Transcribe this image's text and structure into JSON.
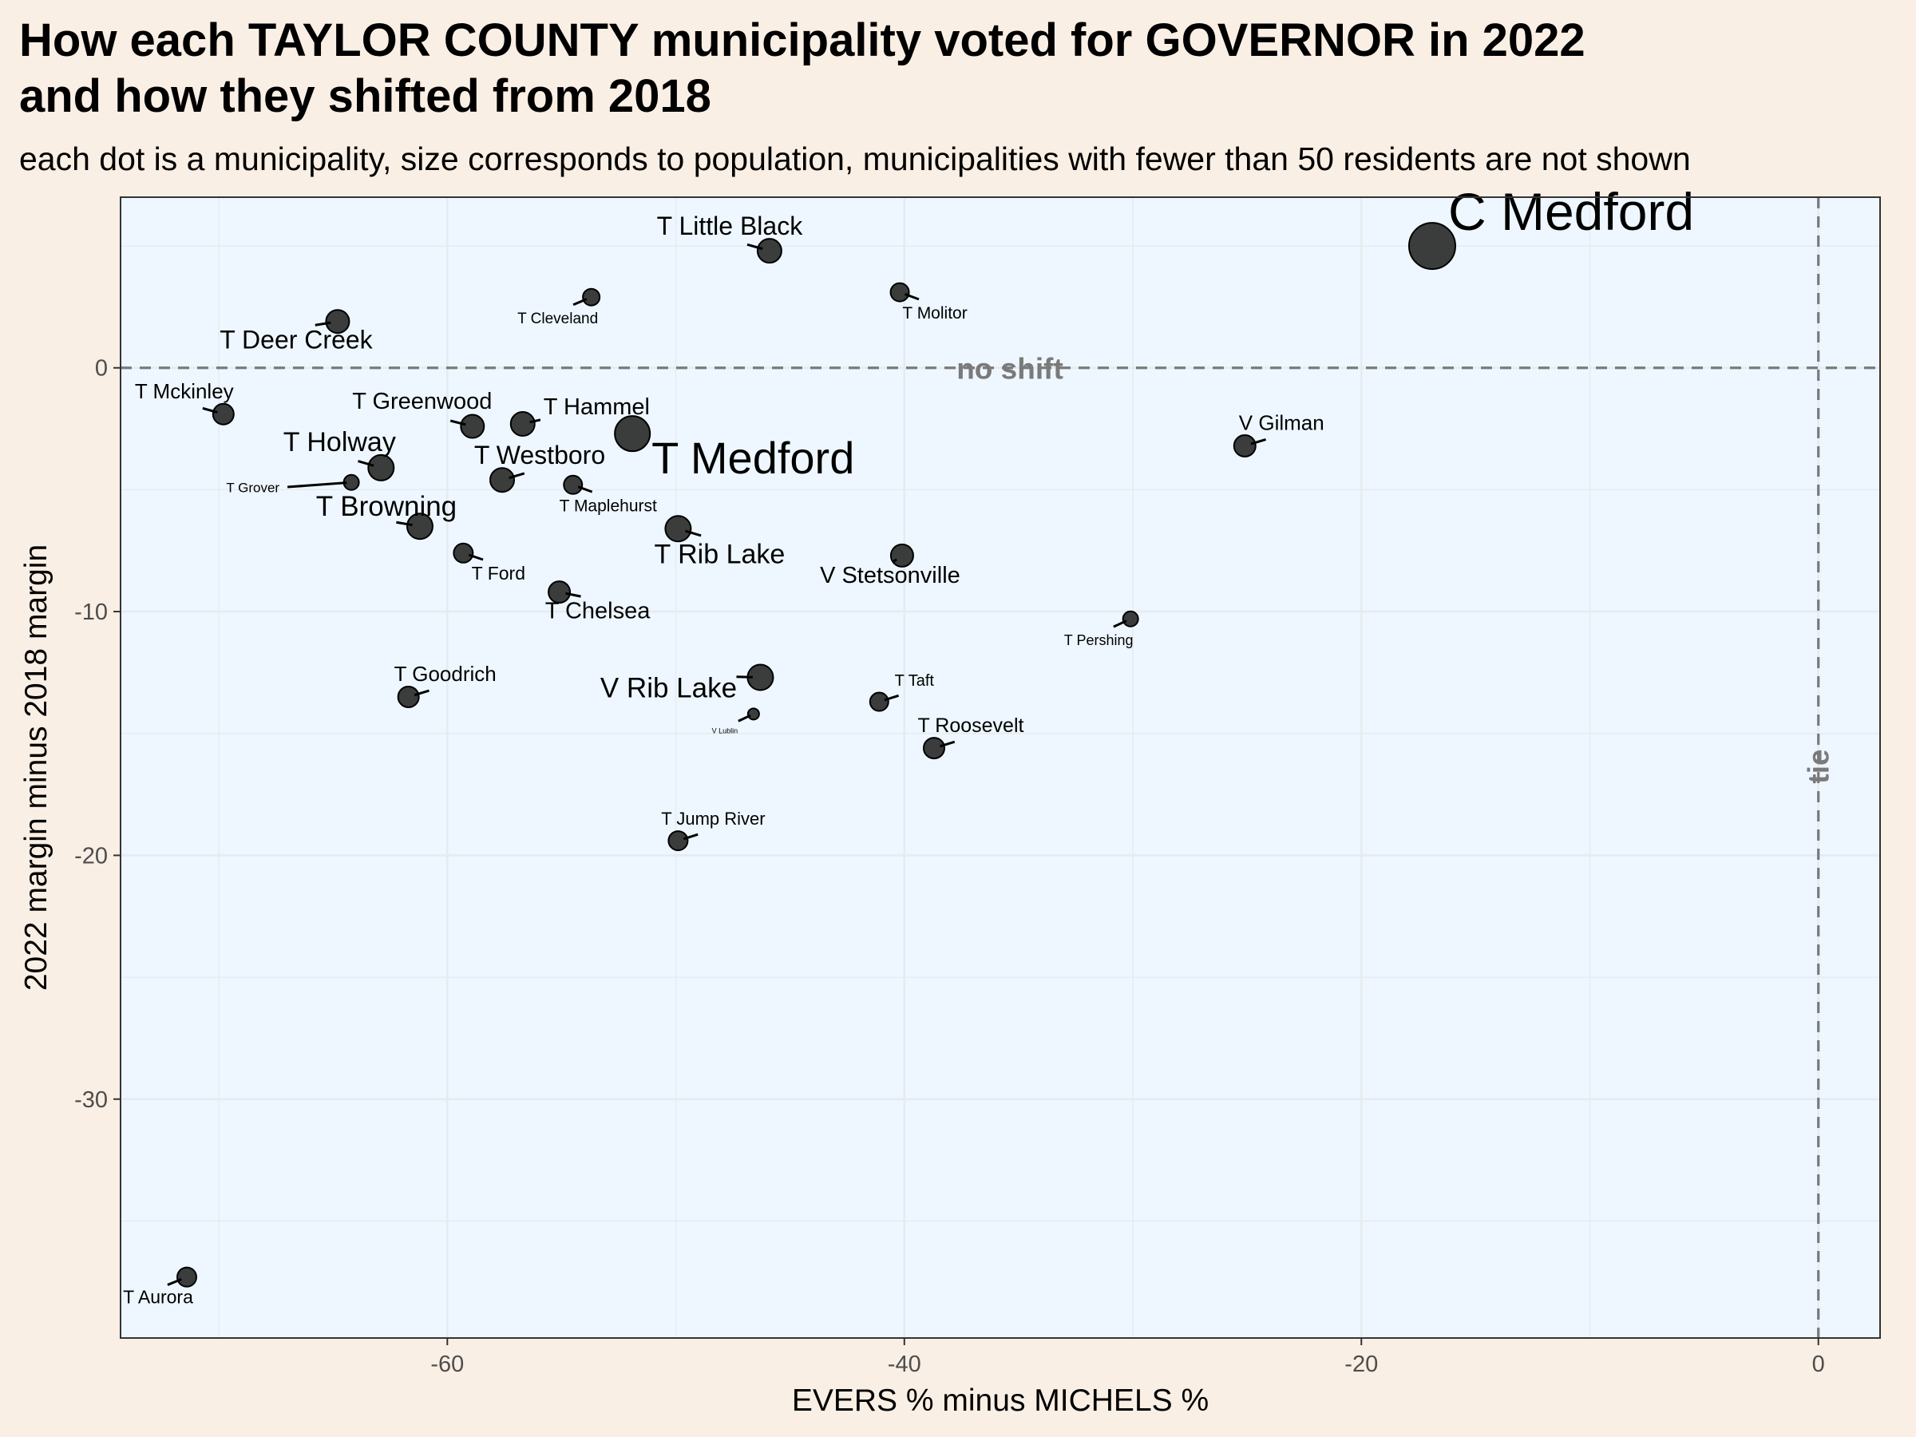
{
  "title_line1": "How each TAYLOR COUNTY municipality voted for GOVERNOR in 2022",
  "title_line2": "and how they shifted from 2018",
  "subtitle": "each dot is a municipality, size corresponds to population, municipalities with fewer than 50 residents are not shown",
  "colors": {
    "page_background": "#faefe4",
    "panel_background": "#eef7ff",
    "grid": "#e6ebef",
    "point_fill": "#2b2b2b",
    "reference_line": "#7a7a7a"
  },
  "chart_data": {
    "type": "scatter",
    "xlabel": "EVERS % minus MICHELS %",
    "ylabel": "2022 margin minus 2018 margin",
    "xlim": [
      -74.3,
      2.7
    ],
    "ylim": [
      -39.8,
      7
    ],
    "x_ticks": [
      -60,
      -40,
      -20,
      0
    ],
    "y_ticks": [
      0,
      -10,
      -20,
      -30
    ],
    "grid": true,
    "reference_lines": {
      "horizontal": {
        "value": 0,
        "label": "no shift"
      },
      "vertical": {
        "value": 0,
        "label": "tie"
      }
    },
    "points": [
      {
        "name": "C Medford",
        "x": -16.9,
        "y": 5.0,
        "size": 58,
        "label_size": 66
      },
      {
        "name": "T Little Black",
        "x": -45.9,
        "y": 4.8,
        "size": 30,
        "label_size": 32
      },
      {
        "name": "T Cleveland",
        "x": -53.7,
        "y": 2.9,
        "size": 21,
        "label_size": 19
      },
      {
        "name": "T Molitor",
        "x": -40.2,
        "y": 3.1,
        "size": 23,
        "label_size": 21
      },
      {
        "name": "T Deer Creek",
        "x": -64.8,
        "y": 1.9,
        "size": 29,
        "label_size": 32
      },
      {
        "name": "T Mckinley",
        "x": -69.8,
        "y": -1.9,
        "size": 26,
        "label_size": 26
      },
      {
        "name": "T Greenwood",
        "x": -58.9,
        "y": -2.4,
        "size": 29,
        "label_size": 29
      },
      {
        "name": "T Hammel",
        "x": -56.7,
        "y": -2.3,
        "size": 30,
        "label_size": 29
      },
      {
        "name": "T Medford",
        "x": -51.9,
        "y": -2.7,
        "size": 44,
        "label_size": 56
      },
      {
        "name": "V Gilman",
        "x": -25.1,
        "y": -3.2,
        "size": 27,
        "label_size": 26
      },
      {
        "name": "T Holway",
        "x": -62.9,
        "y": -4.1,
        "size": 32,
        "label_size": 34
      },
      {
        "name": "T Westboro",
        "x": -57.6,
        "y": -4.6,
        "size": 30,
        "label_size": 32
      },
      {
        "name": "T Grover",
        "x": -64.2,
        "y": -4.7,
        "size": 19,
        "label_size": 17
      },
      {
        "name": "T Maplehurst",
        "x": -54.5,
        "y": -4.8,
        "size": 23,
        "label_size": 21
      },
      {
        "name": "T Browning",
        "x": -61.2,
        "y": -6.5,
        "size": 32,
        "label_size": 35
      },
      {
        "name": "T Rib Lake",
        "x": -49.9,
        "y": -6.6,
        "size": 32,
        "label_size": 34
      },
      {
        "name": "T Ford",
        "x": -59.3,
        "y": -7.6,
        "size": 24,
        "label_size": 23
      },
      {
        "name": "V Stetsonville",
        "x": -40.1,
        "y": -7.7,
        "size": 28,
        "label_size": 29
      },
      {
        "name": "T Chelsea",
        "x": -55.1,
        "y": -9.2,
        "size": 27,
        "label_size": 29
      },
      {
        "name": "T Pershing",
        "x": -30.1,
        "y": -10.3,
        "size": 19,
        "label_size": 18
      },
      {
        "name": "V Rib Lake",
        "x": -46.3,
        "y": -12.7,
        "size": 32,
        "label_size": 35
      },
      {
        "name": "T Goodrich",
        "x": -61.7,
        "y": -13.5,
        "size": 26,
        "label_size": 26
      },
      {
        "name": "T Taft",
        "x": -41.1,
        "y": -13.7,
        "size": 23,
        "label_size": 20
      },
      {
        "name": "V Lublin",
        "x": -46.6,
        "y": -14.2,
        "size": 14,
        "label_size": 9
      },
      {
        "name": "T Roosevelt",
        "x": -38.7,
        "y": -15.6,
        "size": 26,
        "label_size": 25
      },
      {
        "name": "T Jump River",
        "x": -49.9,
        "y": -19.4,
        "size": 24,
        "label_size": 22
      },
      {
        "name": "T Aurora",
        "x": -71.4,
        "y": -37.3,
        "size": 24,
        "label_size": 23
      }
    ]
  }
}
